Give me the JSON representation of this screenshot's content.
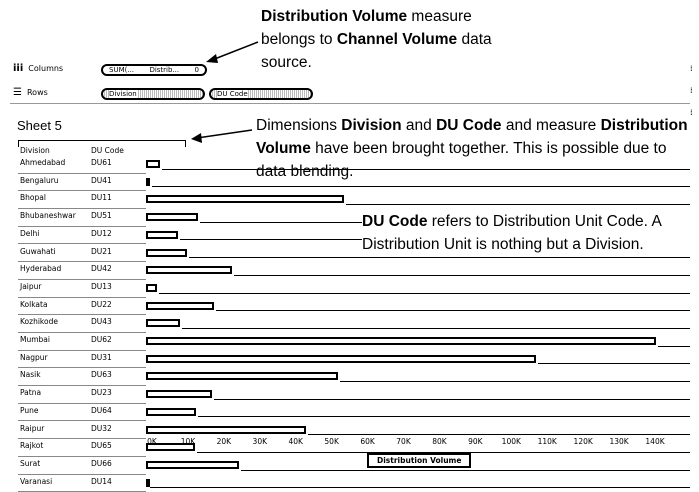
{
  "annotations": {
    "top": {
      "line1_bold": "Distribution Volume",
      "line1_rest": " measure",
      "line2_pre": "belongs to ",
      "line2_bold": "Channel Volume",
      "line2_rest": " data",
      "line3": "source."
    },
    "middle": {
      "a": "Dimensions ",
      "b": "Division",
      "c": " and ",
      "d": "DU Code",
      "e": " and measure ",
      "f": "Distribution",
      "g": "Volume",
      "h": " have been brought together. This is possible due to",
      "i": "data blending."
    },
    "right": {
      "a": "DU Code",
      "b": " refers to Distribution Unit Code. A",
      "c": "Distribution Unit is nothing but a Division."
    }
  },
  "shelves": {
    "columns": {
      "label": "Columns",
      "pill_left": "SUM(...",
      "pill_mid": "Distrib...",
      "pill_right": "0"
    },
    "rows": {
      "label": "Rows",
      "pills": [
        "Division",
        "DU Code"
      ]
    }
  },
  "sheet": {
    "title": "Sheet 5",
    "col_headers": [
      "Division",
      "DU Code"
    ]
  },
  "chart_data": {
    "type": "bar",
    "orientation": "horizontal",
    "categories": [
      "Ahmedabad",
      "Bengaluru",
      "Bhopal",
      "Bhubaneshwar",
      "Delhi",
      "Guwahati",
      "Hyderabad",
      "Jaipur",
      "Kolkata",
      "Kozhikode",
      "Mumbai",
      "Nagpur",
      "Nasik",
      "Patna",
      "Pune",
      "Raipur",
      "Rajkot",
      "Surat",
      "Varanasi"
    ],
    "du_codes": [
      "DU61",
      "DU41",
      "DU11",
      "DU51",
      "DU12",
      "DU21",
      "DU42",
      "DU13",
      "DU22",
      "DU43",
      "DU62",
      "DU31",
      "DU63",
      "DU23",
      "DU64",
      "DU32",
      "DU65",
      "DU66",
      "DU14"
    ],
    "series": [
      {
        "values": [
          4000,
          1000,
          55000,
          14500,
          9000,
          11500,
          24000,
          3000,
          19000,
          9500,
          142000,
          108500,
          53500,
          18500,
          14000,
          44500,
          13500,
          26000,
          500
        ]
      }
    ],
    "xlabel": "Distribution Volume",
    "xlim": [
      0,
      145000
    ],
    "ticks": [
      "0K",
      "10K",
      "20K",
      "30K",
      "40K",
      "50K",
      "60K",
      "70K",
      "80K",
      "90K",
      "100K",
      "110K",
      "120K",
      "130K",
      "140K"
    ],
    "tick_values": [
      0,
      10000,
      20000,
      30000,
      40000,
      50000,
      60000,
      70000,
      80000,
      90000,
      100000,
      110000,
      120000,
      130000,
      140000
    ]
  }
}
